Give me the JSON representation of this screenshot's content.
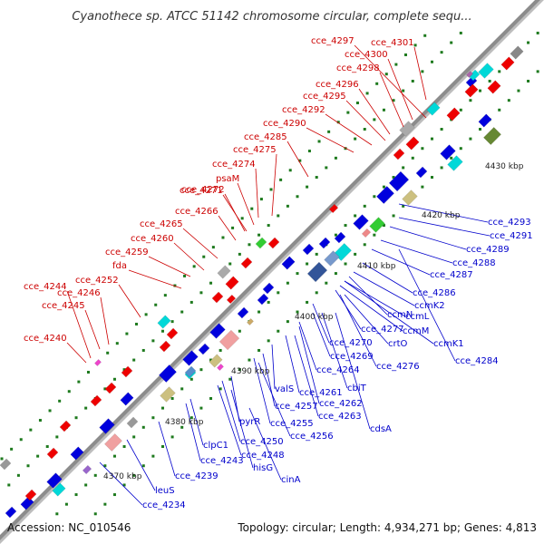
{
  "header": {
    "title": "Cyanothece sp. ATCC 51142 chromosome circular, complete sequ..."
  },
  "footer": {
    "accession": "Accession: NC_010546",
    "summary": "Topology: circular; Length: 4,934,271 bp; Genes: 4,813"
  },
  "colors": {
    "backbone": "#8c8c8c",
    "forward_label": "#cc0000",
    "reverse_label": "#0000cc",
    "cds_forward": "#ee0000",
    "cds_reverse": "#0000dd",
    "rna": "#00d8d8",
    "tick_dot": "#1e7a1e"
  },
  "scale_ticks": [
    "4370 kbp",
    "4380 kbp",
    "4390 kbp",
    "4400 kbp",
    "4410 kbp",
    "4420 kbp",
    "4430 kbp"
  ],
  "labels_upper": [
    "cce_4297",
    "cce_4301",
    "cce_4300",
    "cce_4298",
    "cce_4296",
    "cce_4295",
    "cce_4292",
    "cce_4290",
    "cce_4285",
    "cce_4275",
    "cce_4274",
    "psaM",
    "cce_4271",
    "cce_4272",
    "cce_4266",
    "cce_4265",
    "cce_4260",
    "cce_4259",
    "fda",
    "cce_4252",
    "cce_4244",
    "cce_4246",
    "cce_4245",
    "cce_4240"
  ],
  "labels_lower": [
    "cce_4293",
    "cce_4291",
    "cce_4289",
    "cce_4288",
    "cce_4287",
    "cce_4286",
    "ccmK2",
    "ccmN",
    "ccmL",
    "cce_4277",
    "ccmM",
    "ccmK1",
    "cce_4270",
    "crtO",
    "cce_4284",
    "cce_4269",
    "cce_4276",
    "cce_4264",
    "cbiT",
    "valS",
    "cce_4261",
    "cce_4262",
    "cce_4257",
    "cce_4263",
    "pyrR",
    "cce_4255",
    "cdsA",
    "cce_4256",
    "clpC1",
    "cce_4250",
    "cce_4248",
    "cce_4243",
    "hisG",
    "cce_4239",
    "cinA",
    "leuS",
    "cce_4234"
  ]
}
